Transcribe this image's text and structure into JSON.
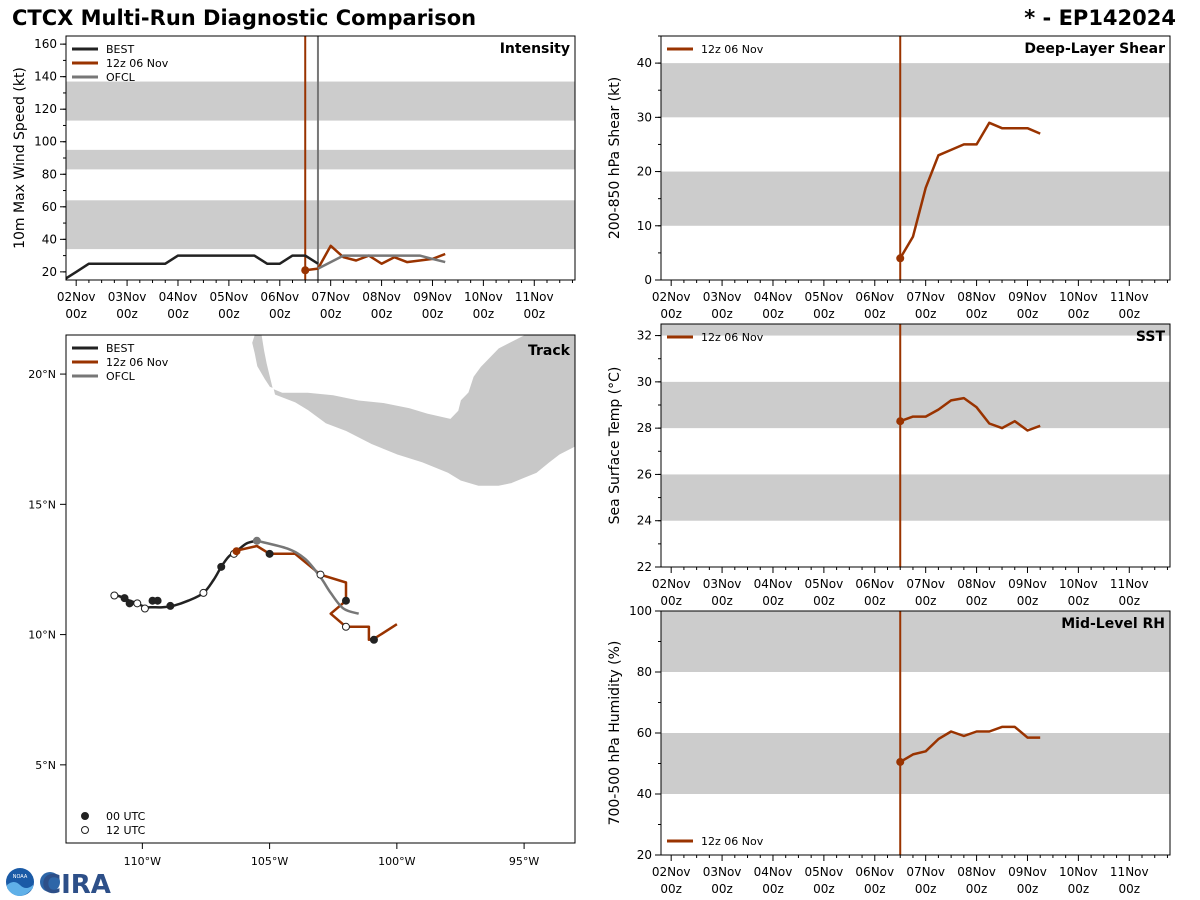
{
  "header": {
    "title_left": "CTCX Multi-Run Diagnostic Comparison",
    "title_right": "* - EP142024"
  },
  "colors": {
    "best": "#222222",
    "run": "#993300",
    "ofcl": "#777777",
    "band": "#cccccc",
    "land": "#c8c8c8"
  },
  "logo": {
    "text": "CIRA",
    "badge": "NOAA"
  },
  "chart_data": [
    {
      "id": "intensity",
      "type": "line",
      "title": "Intensity",
      "ylabel": "10m Max Wind Speed (kt)",
      "xlim": [
        -0.2,
        9.8
      ],
      "ylim": [
        15,
        165
      ],
      "yticks": [
        20,
        40,
        60,
        80,
        100,
        120,
        140,
        160
      ],
      "xtick_labels": [
        [
          "02Nov",
          "00z"
        ],
        [
          "03Nov",
          "00z"
        ],
        [
          "04Nov",
          "00z"
        ],
        [
          "05Nov",
          "00z"
        ],
        [
          "06Nov",
          "00z"
        ],
        [
          "07Nov",
          "00z"
        ],
        [
          "08Nov",
          "00z"
        ],
        [
          "09Nov",
          "00z"
        ],
        [
          "10Nov",
          "00z"
        ],
        [
          "11Nov",
          "00z"
        ]
      ],
      "bands": [
        [
          34,
          64
        ],
        [
          83,
          95
        ],
        [
          113,
          137
        ]
      ],
      "vlines": [
        {
          "x": 4.5,
          "series": "run"
        },
        {
          "x": 4.75,
          "series": "ofcl"
        }
      ],
      "legend": [
        "BEST",
        "12z 06 Nov",
        "OFCL"
      ],
      "series": [
        {
          "name": "BEST",
          "key": "best",
          "x": [
            -0.25,
            0,
            0.25,
            0.5,
            0.75,
            1,
            1.25,
            1.5,
            1.75,
            2,
            2.25,
            2.5,
            2.75,
            3,
            3.25,
            3.5,
            3.75,
            4,
            4.25,
            4.5,
            4.75
          ],
          "y": [
            15,
            20,
            25,
            25,
            25,
            25,
            25,
            25,
            25,
            30,
            30,
            30,
            30,
            30,
            30,
            30,
            25,
            25,
            30,
            30,
            25
          ]
        },
        {
          "name": "12z 06 Nov",
          "key": "run",
          "x": [
            4.5,
            4.75,
            5,
            5.25,
            5.5,
            5.75,
            6,
            6.25,
            6.5,
            6.75,
            7,
            7.25
          ],
          "y": [
            21,
            22,
            36,
            29,
            27,
            30,
            25,
            29,
            26,
            27,
            28,
            31
          ]
        },
        {
          "name": "OFCL",
          "key": "ofcl",
          "x": [
            4.75,
            5,
            5.25,
            5.5,
            5.75,
            6,
            6.25,
            6.5,
            6.75,
            7,
            7.25
          ],
          "y": [
            22,
            26,
            30,
            30,
            30,
            30,
            30,
            30,
            30,
            28,
            26
          ]
        }
      ],
      "markers": [
        {
          "series": "run",
          "x": 4.5,
          "y": 21
        }
      ]
    },
    {
      "id": "shear",
      "type": "line",
      "title": "Deep-Layer Shear",
      "ylabel": "200-850 hPa Shear (kt)",
      "xlim": [
        -0.2,
        9.8
      ],
      "ylim": [
        0,
        45
      ],
      "yticks": [
        0,
        10,
        20,
        30,
        40
      ],
      "xtick_labels": [
        [
          "02Nov",
          "00z"
        ],
        [
          "03Nov",
          "00z"
        ],
        [
          "04Nov",
          "00z"
        ],
        [
          "05Nov",
          "00z"
        ],
        [
          "06Nov",
          "00z"
        ],
        [
          "07Nov",
          "00z"
        ],
        [
          "08Nov",
          "00z"
        ],
        [
          "09Nov",
          "00z"
        ],
        [
          "10Nov",
          "00z"
        ],
        [
          "11Nov",
          "00z"
        ]
      ],
      "bands": [
        [
          10,
          20
        ],
        [
          30,
          40
        ]
      ],
      "vlines": [
        {
          "x": 4.5,
          "series": "run"
        }
      ],
      "legend": [
        "12z 06 Nov"
      ],
      "series": [
        {
          "name": "12z 06 Nov",
          "key": "run",
          "x": [
            4.5,
            4.75,
            5,
            5.25,
            5.5,
            5.75,
            6,
            6.25,
            6.5,
            6.75,
            7,
            7.25
          ],
          "y": [
            4,
            8,
            17,
            23,
            24,
            25,
            25,
            29,
            28,
            28,
            28,
            27
          ]
        }
      ],
      "markers": [
        {
          "series": "run",
          "x": 4.5,
          "y": 4
        }
      ]
    },
    {
      "id": "sst",
      "type": "line",
      "title": "SST",
      "ylabel": "Sea Surface Temp (°C)",
      "xlim": [
        -0.2,
        9.8
      ],
      "ylim": [
        22,
        32.5
      ],
      "yticks": [
        22,
        24,
        26,
        28,
        30,
        32
      ],
      "xtick_labels": [
        [
          "02Nov",
          "00z"
        ],
        [
          "03Nov",
          "00z"
        ],
        [
          "04Nov",
          "00z"
        ],
        [
          "05Nov",
          "00z"
        ],
        [
          "06Nov",
          "00z"
        ],
        [
          "07Nov",
          "00z"
        ],
        [
          "08Nov",
          "00z"
        ],
        [
          "09Nov",
          "00z"
        ],
        [
          "10Nov",
          "00z"
        ],
        [
          "11Nov",
          "00z"
        ]
      ],
      "bands": [
        [
          24,
          26
        ],
        [
          28,
          30
        ],
        [
          32,
          34
        ]
      ],
      "vlines": [
        {
          "x": 4.5,
          "series": "run"
        }
      ],
      "legend": [
        "12z 06 Nov"
      ],
      "series": [
        {
          "name": "12z 06 Nov",
          "key": "run",
          "x": [
            4.5,
            4.75,
            5,
            5.25,
            5.5,
            5.75,
            6,
            6.25,
            6.5,
            6.75,
            7,
            7.25
          ],
          "y": [
            28.3,
            28.5,
            28.5,
            28.8,
            29.2,
            29.3,
            28.9,
            28.2,
            28.0,
            28.3,
            27.9,
            28.1
          ]
        }
      ],
      "markers": [
        {
          "series": "run",
          "x": 4.5,
          "y": 28.3
        }
      ]
    },
    {
      "id": "rh",
      "type": "line",
      "title": "Mid-Level RH",
      "ylabel": "700-500 hPa Humidity (%)",
      "xlim": [
        -0.2,
        9.8
      ],
      "ylim": [
        20,
        100
      ],
      "yticks": [
        20,
        40,
        60,
        80,
        100
      ],
      "xtick_labels": [
        [
          "02Nov",
          "00z"
        ],
        [
          "03Nov",
          "00z"
        ],
        [
          "04Nov",
          "00z"
        ],
        [
          "05Nov",
          "00z"
        ],
        [
          "06Nov",
          "00z"
        ],
        [
          "07Nov",
          "00z"
        ],
        [
          "08Nov",
          "00z"
        ],
        [
          "09Nov",
          "00z"
        ],
        [
          "10Nov",
          "00z"
        ],
        [
          "11Nov",
          "00z"
        ]
      ],
      "bands": [
        [
          40,
          60
        ],
        [
          80,
          100
        ]
      ],
      "vlines": [
        {
          "x": 4.5,
          "series": "run"
        }
      ],
      "legend": [
        "12z 06 Nov"
      ],
      "series": [
        {
          "name": "12z 06 Nov",
          "key": "run",
          "x": [
            4.5,
            4.75,
            5,
            5.25,
            5.5,
            5.75,
            6,
            6.25,
            6.5,
            6.75,
            7,
            7.25
          ],
          "y": [
            50.5,
            53,
            54,
            58,
            60.5,
            59,
            60.5,
            60.5,
            62,
            62,
            58.5,
            58.5
          ]
        }
      ],
      "markers": [
        {
          "series": "run",
          "x": 4.5,
          "y": 50.5
        }
      ]
    },
    {
      "id": "track",
      "type": "scatter",
      "title": "Track",
      "xlim": [
        -113,
        -93
      ],
      "ylim": [
        2,
        21.5
      ],
      "xticks": [
        -110,
        -105,
        -100,
        -95
      ],
      "xtick_labels": [
        "110°W",
        "105°W",
        "100°W",
        "95°W"
      ],
      "yticks": [
        5,
        10,
        15,
        20
      ],
      "ytick_labels": [
        "5°N",
        "10°N",
        "15°N",
        "20°N"
      ],
      "legend": [
        "BEST",
        "12z 06 Nov",
        "OFCL"
      ],
      "marker_legend": [
        "00 UTC",
        "12 UTC"
      ],
      "series": [
        {
          "name": "BEST",
          "key": "best",
          "lon": [
            -111.0,
            -110.7,
            -110.5,
            -110.2,
            -110.0,
            -109.8,
            -109.6,
            -109.2,
            -108.8,
            -108.2,
            -107.6,
            -107.2,
            -106.9,
            -106.6,
            -106.3,
            -105.9,
            -105.5
          ],
          "lat": [
            11.5,
            11.4,
            11.3,
            11.2,
            11.1,
            11.05,
            11.05,
            11.05,
            11.1,
            11.3,
            11.6,
            12.1,
            12.6,
            13.0,
            13.2,
            13.5,
            13.6
          ]
        },
        {
          "name": "12z 06 Nov",
          "key": "run",
          "lon": [
            -106.4,
            -105.5,
            -105.0,
            -104.0,
            -103.0,
            -102.0,
            -102.0,
            -102.6,
            -102.0,
            -101.1,
            -101.1,
            -100.8,
            -100.0
          ],
          "lat": [
            13.2,
            13.4,
            13.1,
            13.1,
            12.3,
            12.0,
            11.3,
            10.8,
            10.3,
            10.3,
            9.8,
            9.9,
            10.4
          ],
          "linear": true
        },
        {
          "name": "OFCL",
          "key": "ofcl",
          "lon": [
            -105.5,
            -104.3,
            -103.6,
            -103.0,
            -102.6,
            -102.1,
            -101.5
          ],
          "lat": [
            13.6,
            13.3,
            12.9,
            12.2,
            11.6,
            11.0,
            10.8
          ]
        }
      ],
      "points": [
        {
          "lon": -110.7,
          "lat": 11.4,
          "fill": "best"
        },
        {
          "lon": -110.5,
          "lat": 11.2,
          "fill": "best"
        },
        {
          "lon": -109.6,
          "lat": 11.3,
          "fill": "best"
        },
        {
          "lon": -109.4,
          "lat": 11.3,
          "fill": "best"
        },
        {
          "lon": -108.9,
          "lat": 11.1,
          "fill": "best"
        },
        {
          "lon": -106.9,
          "lat": 12.6,
          "fill": "best"
        },
        {
          "lon": -105.0,
          "lat": 13.1,
          "fill": "best"
        },
        {
          "lon": -102.0,
          "lat": 11.3,
          "fill": "best"
        },
        {
          "lon": -100.9,
          "lat": 9.8,
          "fill": "best"
        },
        {
          "lon": -111.1,
          "lat": 11.5,
          "fill": "open"
        },
        {
          "lon": -110.2,
          "lat": 11.2,
          "fill": "open"
        },
        {
          "lon": -109.9,
          "lat": 11.0,
          "fill": "open"
        },
        {
          "lon": -107.6,
          "lat": 11.6,
          "fill": "open"
        },
        {
          "lon": -106.4,
          "lat": 13.1,
          "fill": "open"
        },
        {
          "lon": -103.0,
          "lat": 12.3,
          "fill": "open"
        },
        {
          "lon": -102.0,
          "lat": 10.3,
          "fill": "open"
        },
        {
          "lon": -106.3,
          "lat": 13.2,
          "fill": "run"
        },
        {
          "lon": -105.5,
          "lat": 13.6,
          "fill": "ofcl"
        }
      ],
      "coast": {
        "lon": [
          -104.8,
          -104.0,
          -103.5,
          -102.8,
          -102.0,
          -101.0,
          -100.0,
          -99.0,
          -98.0,
          -97.5,
          -96.8,
          -96.0,
          -95.5,
          -95.0,
          -94.5,
          -94.0,
          -93.6,
          -93.0,
          -93.0,
          -95.0,
          -96.0,
          -96.7,
          -97.0,
          -97.2,
          -97.5,
          -97.6,
          -97.9,
          -98.8,
          -99.5,
          -100.5,
          -101.5,
          -102.5,
          -103.5,
          -104.5,
          -105.0,
          -105.2,
          -105.5,
          -105.6,
          -105.7,
          -105.6,
          -105.3,
          -105.2,
          -105.1
        ],
        "lat": [
          19.2,
          18.9,
          18.6,
          18.1,
          17.8,
          17.3,
          16.9,
          16.6,
          16.2,
          15.9,
          15.7,
          15.7,
          15.8,
          16.0,
          16.2,
          16.6,
          16.9,
          17.2,
          21.5,
          21.5,
          21.0,
          20.3,
          19.9,
          19.3,
          19.0,
          18.6,
          18.3,
          18.5,
          18.7,
          18.9,
          19.0,
          19.2,
          19.3,
          19.3,
          19.5,
          19.8,
          20.3,
          20.8,
          21.2,
          21.5,
          21.5,
          20.9,
          20.4
        ]
      }
    }
  ]
}
